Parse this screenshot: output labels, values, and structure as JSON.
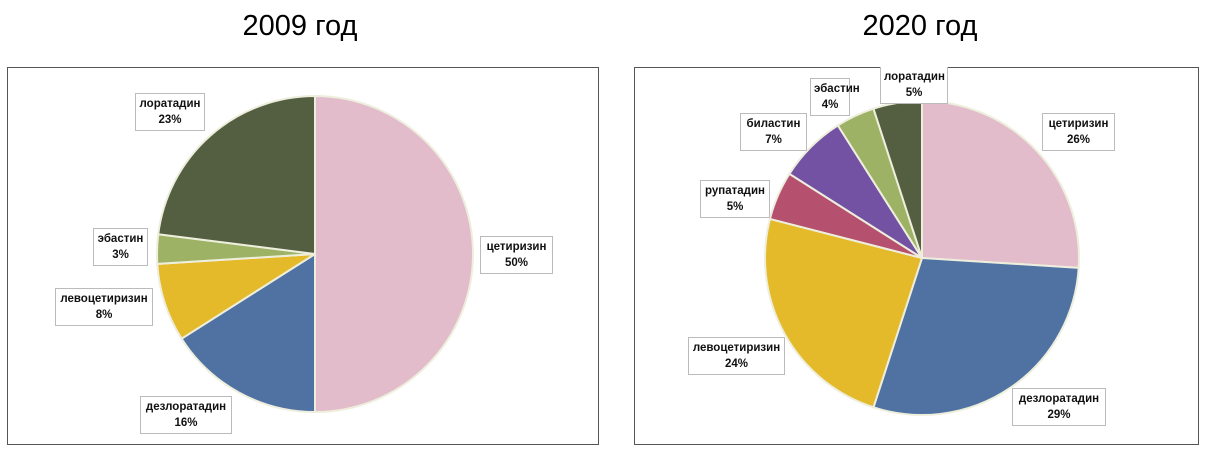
{
  "chart_data": [
    {
      "type": "pie",
      "title": "2009 год",
      "start": "top",
      "direction": "clockwise",
      "slices": [
        {
          "label": "цетиризин",
          "value": 50,
          "display": "50%",
          "color": "#e2bccb"
        },
        {
          "label": "дезлоратадин",
          "value": 16,
          "display": "16%",
          "color": "#4f72a3"
        },
        {
          "label": "левоцетиризин",
          "value": 8,
          "display": "8%",
          "color": "#e4ba2b"
        },
        {
          "label": "эбастин",
          "value": 3,
          "display": "3%",
          "color": "#9db264"
        },
        {
          "label": "лоратадин",
          "value": 23,
          "display": "23%",
          "color": "#535f40"
        }
      ]
    },
    {
      "type": "pie",
      "title": "2020 год",
      "start": "top",
      "direction": "clockwise",
      "slices": [
        {
          "label": "цетиризин",
          "value": 26,
          "display": "26%",
          "color": "#e2bccb"
        },
        {
          "label": "дезлоратадин",
          "value": 29,
          "display": "29%",
          "color": "#4f72a3"
        },
        {
          "label": "левоцетиризин",
          "value": 24,
          "display": "24%",
          "color": "#e4ba2b"
        },
        {
          "label": "рупатадин",
          "value": 5,
          "display": "5%",
          "color": "#b6506f"
        },
        {
          "label": "биластин",
          "value": 7,
          "display": "7%",
          "color": "#7352a3"
        },
        {
          "label": "эбастин",
          "value": 4,
          "display": "4%",
          "color": "#9db264"
        },
        {
          "label": "лоратадин",
          "value": 5,
          "display": "5%",
          "color": "#535f40"
        }
      ]
    }
  ]
}
